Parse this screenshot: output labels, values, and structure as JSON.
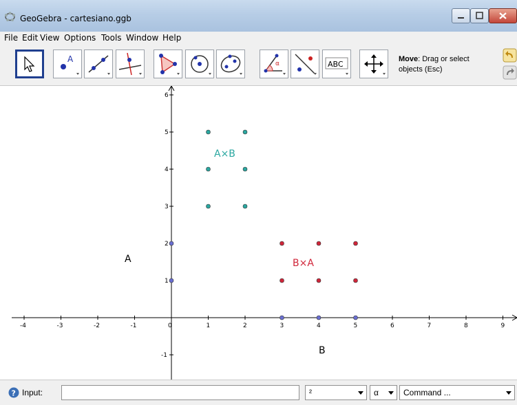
{
  "window": {
    "title": "GeoGebra - cartesiano.ggb"
  },
  "menu": [
    "File",
    "Edit",
    "View",
    "Options",
    "Tools",
    "Window",
    "Help"
  ],
  "toolbar": {
    "help_title": "Move",
    "help_text": ": Drag or select",
    "help_text2": "objects (Esc)",
    "abc_label": "ABC"
  },
  "graphics": {
    "x_ticks": [
      "-4",
      "-3",
      "-2",
      "-1",
      "0",
      "1",
      "2",
      "3",
      "4",
      "5",
      "6",
      "7",
      "8",
      "9"
    ],
    "y_ticks": [
      "-1",
      "1",
      "2",
      "3",
      "4",
      "5",
      "6"
    ],
    "labels": {
      "set_a": "A",
      "set_b": "B",
      "a_times_b": "A×B",
      "b_times_a": "B×A"
    },
    "colors": {
      "a_times_b": "#2aa7a0",
      "b_times_a": "#d0263a",
      "axis_points": "#6a6fd2"
    },
    "set_a_points": [
      [
        0,
        1
      ],
      [
        0,
        2
      ]
    ],
    "set_b_points": [
      [
        3,
        0
      ],
      [
        4,
        0
      ],
      [
        5,
        0
      ]
    ],
    "a_times_b_points": [
      [
        1,
        3
      ],
      [
        1,
        4
      ],
      [
        1,
        5
      ],
      [
        2,
        3
      ],
      [
        2,
        4
      ],
      [
        2,
        5
      ]
    ],
    "b_times_a_points": [
      [
        3,
        1
      ],
      [
        3,
        2
      ],
      [
        4,
        1
      ],
      [
        4,
        2
      ],
      [
        5,
        1
      ],
      [
        5,
        2
      ]
    ]
  },
  "inputbar": {
    "label": "Input:",
    "input_value": "",
    "exponent_combo": "²",
    "alpha_combo": "α",
    "command_combo": "Command ..."
  }
}
